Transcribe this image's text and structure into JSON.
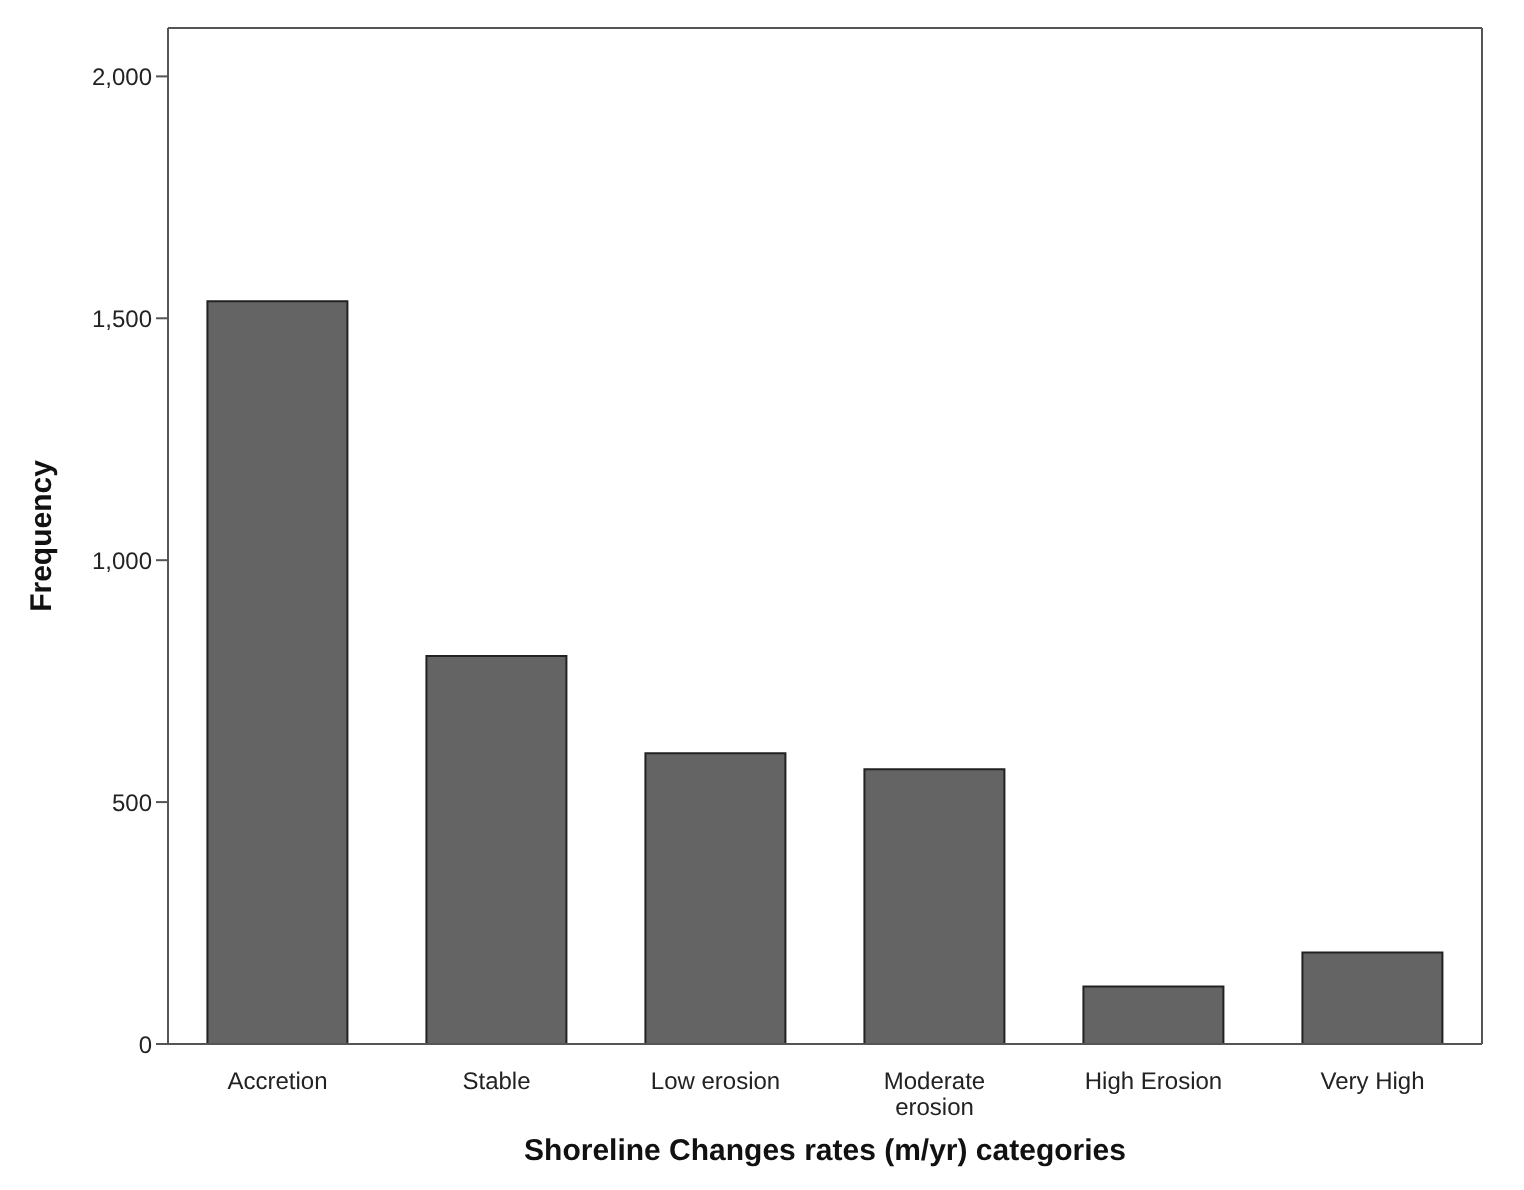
{
  "chart_data": {
    "type": "bar",
    "xlabel": "Shoreline Changes rates (m/yr) categories",
    "ylabel": "Frequency",
    "categories": [
      "Accretion",
      "Stable",
      "Low erosion",
      "Moderate erosion",
      "High Erosion",
      "Very High"
    ],
    "values": [
      1535,
      802,
      601,
      568,
      119,
      189
    ],
    "color": "#646464",
    "ylim": [
      0,
      2100
    ],
    "yticks": [
      0,
      500,
      {
        "value": 1000,
        "label": "1,000"
      },
      {
        "value": 1500,
        "label": "1,500"
      },
      {
        "value": 2000,
        "label": "2,000"
      }
    ],
    "grid": false,
    "legend": false
  }
}
